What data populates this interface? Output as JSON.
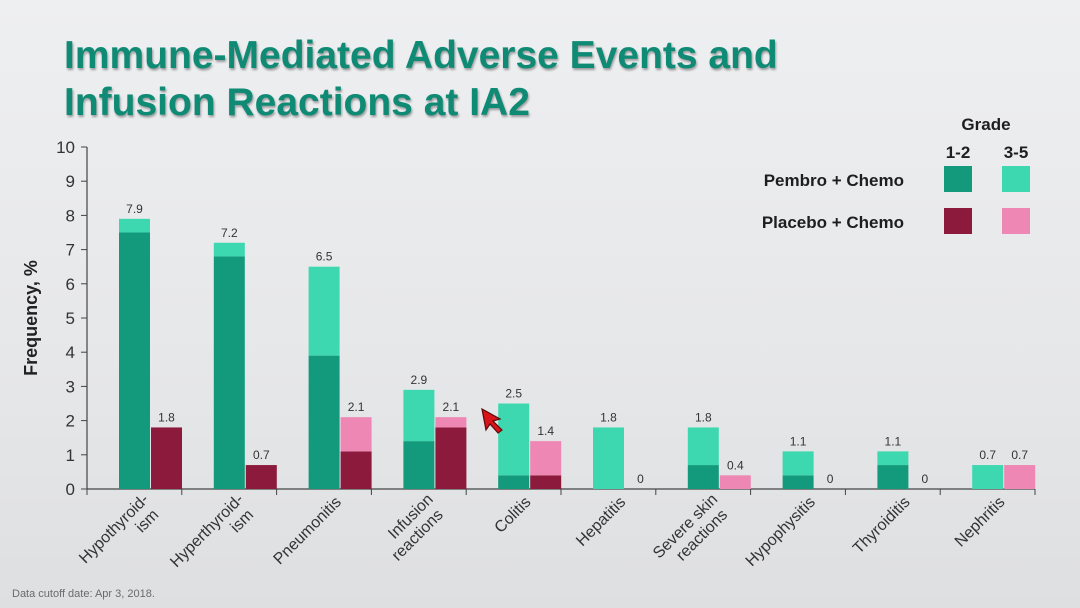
{
  "title_line1": "Immune-Mediated Adverse Events and",
  "title_line2": "Infusion Reactions at IA2",
  "footnote": "Data cutoff date: Apr 3, 2018.",
  "colors": {
    "pembro_12": "#139a7c",
    "pembro_35": "#3ed8b0",
    "placebo_12": "#8c1a3c",
    "placebo_35": "#ef87b4",
    "title": "#0f8a74"
  },
  "legend": {
    "grade_label": "Grade",
    "grade_12": "1-2",
    "grade_35": "3-5",
    "pembro_label": "Pembro + Chemo",
    "placebo_label": "Placebo + Chemo"
  },
  "chart_data": {
    "type": "bar",
    "ylabel": "Frequency, %",
    "xlabel": "",
    "ylim": [
      0,
      10
    ],
    "yticks": [
      0,
      1,
      2,
      3,
      4,
      5,
      6,
      7,
      8,
      9,
      10
    ],
    "categories": [
      [
        "Hypothyroid-",
        "ism"
      ],
      [
        "Hyperthyroid-",
        "ism"
      ],
      [
        "Pneumonitis"
      ],
      [
        "Infusion",
        "reactions"
      ],
      [
        "Colitis"
      ],
      [
        "Hepatitis"
      ],
      [
        "Severe skin",
        "reactions"
      ],
      [
        "Hypophysitis"
      ],
      [
        "Thyroiditis"
      ],
      [
        "Nephritis"
      ]
    ],
    "series": [
      {
        "name": "Pembro + Chemo",
        "grade_12": [
          7.5,
          6.8,
          3.9,
          1.4,
          0.4,
          0,
          0.7,
          0.4,
          0.7,
          0
        ],
        "grade_35": [
          0.4,
          0.4,
          2.6,
          1.5,
          2.1,
          1.8,
          1.1,
          0.7,
          0.4,
          0.7
        ],
        "totals": [
          "7.9",
          "7.2",
          "6.5",
          "2.9",
          "2.5",
          "1.8",
          "1.8",
          "1.1",
          "1.1",
          "0.7"
        ]
      },
      {
        "name": "Placebo + Chemo",
        "grade_12": [
          1.8,
          0.7,
          1.1,
          1.8,
          0.4,
          0,
          0,
          0,
          0,
          0
        ],
        "grade_35": [
          0,
          0,
          1.0,
          0.3,
          1.0,
          0,
          0.4,
          0,
          0,
          0.7
        ],
        "totals": [
          "1.8",
          "0.7",
          "2.1",
          "2.1",
          "1.4",
          "0",
          "0.4",
          "0",
          "0",
          "0.7"
        ]
      }
    ]
  }
}
